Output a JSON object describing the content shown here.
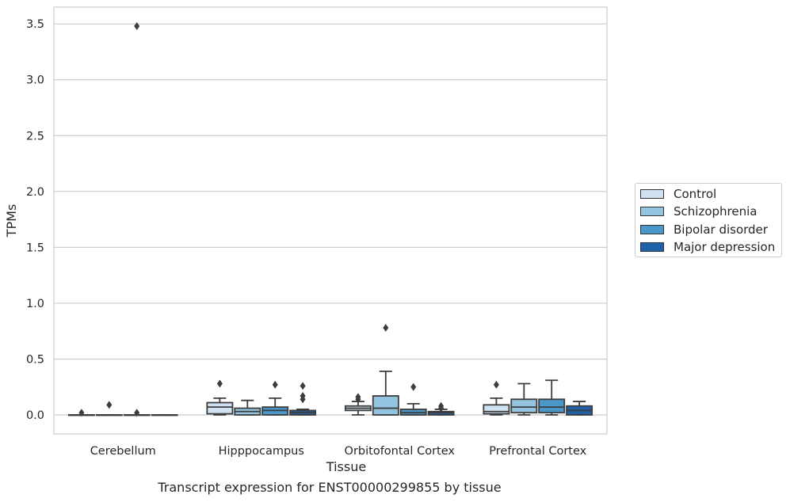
{
  "chart_data": {
    "type": "box",
    "title": "Transcript expression for ENST00000299855 by tissue",
    "xlabel": "Tissue",
    "ylabel": "TPMs",
    "ylim": [
      -0.17,
      3.65
    ],
    "yticks": [
      "0.0",
      "0.5",
      "1.0",
      "1.5",
      "2.0",
      "2.5",
      "3.0",
      "3.5"
    ],
    "ytick_values": [
      0.0,
      0.5,
      1.0,
      1.5,
      2.0,
      2.5,
      3.0,
      3.5
    ],
    "categories": [
      "Cerebellum",
      "Hipppocampus",
      "Orbitofontal Cortex",
      "Prefrontal Cortex"
    ],
    "grid": "horizontal",
    "legend_position": "right",
    "series": [
      {
        "name": "Control",
        "color": "#d0e1f2",
        "boxes": [
          {
            "q1": 0.0,
            "median": 0.0,
            "q3": 0.0,
            "whisker_low": 0.0,
            "whisker_high": 0.0,
            "outliers": [
              0.02
            ]
          },
          {
            "q1": 0.01,
            "median": 0.07,
            "q3": 0.11,
            "whisker_low": 0.0,
            "whisker_high": 0.15,
            "outliers": [
              0.28
            ]
          },
          {
            "q1": 0.04,
            "median": 0.06,
            "q3": 0.08,
            "whisker_low": 0.0,
            "whisker_high": 0.12,
            "outliers": [
              0.16,
              0.14
            ]
          },
          {
            "q1": 0.01,
            "median": 0.03,
            "q3": 0.09,
            "whisker_low": 0.0,
            "whisker_high": 0.15,
            "outliers": [
              0.27
            ]
          }
        ]
      },
      {
        "name": "Schizophrenia",
        "color": "#94c4df",
        "boxes": [
          {
            "q1": 0.0,
            "median": 0.0,
            "q3": 0.0,
            "whisker_low": 0.0,
            "whisker_high": 0.0,
            "outliers": [
              0.09
            ]
          },
          {
            "q1": 0.0,
            "median": 0.03,
            "q3": 0.06,
            "whisker_low": 0.0,
            "whisker_high": 0.13,
            "outliers": []
          },
          {
            "q1": 0.0,
            "median": 0.06,
            "q3": 0.17,
            "whisker_low": 0.0,
            "whisker_high": 0.39,
            "outliers": [
              0.78
            ]
          },
          {
            "q1": 0.02,
            "median": 0.07,
            "q3": 0.14,
            "whisker_low": 0.0,
            "whisker_high": 0.28,
            "outliers": []
          }
        ]
      },
      {
        "name": "Bipolar disorder",
        "color": "#4a98c9",
        "boxes": [
          {
            "q1": 0.0,
            "median": 0.0,
            "q3": 0.0,
            "whisker_low": 0.0,
            "whisker_high": 0.0,
            "outliers": [
              3.48,
              0.02
            ]
          },
          {
            "q1": 0.0,
            "median": 0.04,
            "q3": 0.07,
            "whisker_low": 0.0,
            "whisker_high": 0.15,
            "outliers": [
              0.27
            ]
          },
          {
            "q1": 0.0,
            "median": 0.02,
            "q3": 0.05,
            "whisker_low": 0.0,
            "whisker_high": 0.1,
            "outliers": [
              0.25
            ]
          },
          {
            "q1": 0.02,
            "median": 0.07,
            "q3": 0.14,
            "whisker_low": 0.0,
            "whisker_high": 0.31,
            "outliers": []
          }
        ]
      },
      {
        "name": "Major depression",
        "color": "#2060a8",
        "boxes": [
          {
            "q1": 0.0,
            "median": 0.0,
            "q3": 0.0,
            "whisker_low": 0.0,
            "whisker_high": 0.0,
            "outliers": []
          },
          {
            "q1": 0.0,
            "median": 0.02,
            "q3": 0.04,
            "whisker_low": 0.0,
            "whisker_high": 0.05,
            "outliers": [
              0.26,
              0.17,
              0.14
            ]
          },
          {
            "q1": 0.0,
            "median": 0.02,
            "q3": 0.03,
            "whisker_low": 0.0,
            "whisker_high": 0.05,
            "outliers": [
              0.08,
              0.06
            ]
          },
          {
            "q1": 0.0,
            "median": 0.04,
            "q3": 0.08,
            "whisker_low": 0.0,
            "whisker_high": 0.12,
            "outliers": []
          }
        ]
      }
    ]
  }
}
